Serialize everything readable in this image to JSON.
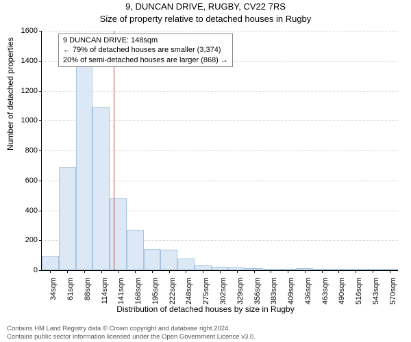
{
  "chart": {
    "type": "histogram",
    "title_main": "9, DUNCAN DRIVE, RUGBY, CV22 7RS",
    "title_sub": "Size of property relative to detached houses in Rugby",
    "ylabel": "Number of detached properties",
    "xlabel": "Distribution of detached houses by size in Rugby",
    "ylim": [
      0,
      1600
    ],
    "ytick_step": 200,
    "xticks": [
      "34sqm",
      "61sqm",
      "88sqm",
      "114sqm",
      "141sqm",
      "168sqm",
      "195sqm",
      "222sqm",
      "248sqm",
      "275sqm",
      "302sqm",
      "329sqm",
      "356sqm",
      "383sqm",
      "409sqm",
      "436sqm",
      "463sqm",
      "490sqm",
      "516sqm",
      "543sqm",
      "570sqm"
    ],
    "values": [
      95,
      690,
      1430,
      1090,
      480,
      270,
      140,
      135,
      80,
      30,
      25,
      20,
      12,
      10,
      8,
      15,
      5,
      5,
      3,
      3,
      2
    ],
    "bar_fill": "#dce8f5",
    "bar_border": "#a8c3e0",
    "grid_color": "#cccccc",
    "background_color": "#ffffff",
    "reference_line": {
      "x_index": 4.25,
      "color": "#d04040"
    },
    "annotation": {
      "line1": "9 DUNCAN DRIVE: 148sqm",
      "line2": "← 79% of detached houses are smaller (3,374)",
      "line3": "20% of semi-detached houses are larger (868) →",
      "border_color": "#888888"
    },
    "title_fontsize": 13,
    "label_fontsize": 12,
    "tick_fontsize": 11
  },
  "footer": {
    "line1": "Contains HM Land Registry data © Crown copyright and database right 2024.",
    "line2": "Contains public sector information licensed under the Open Government Licence v3.0."
  }
}
